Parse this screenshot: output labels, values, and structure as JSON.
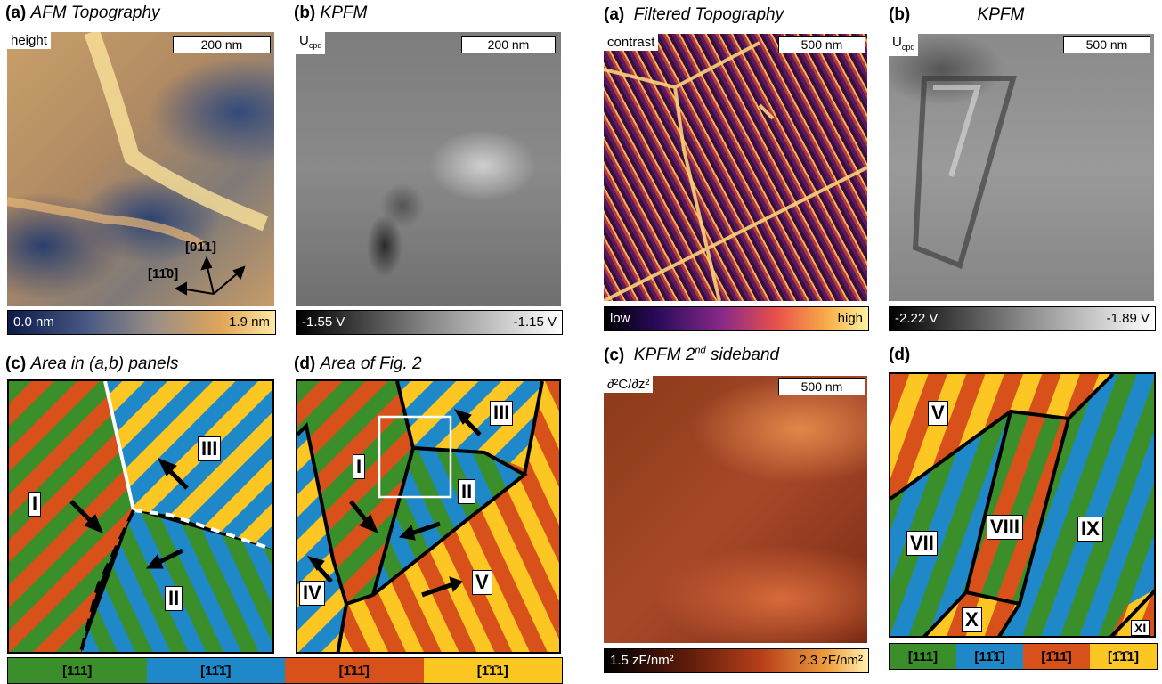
{
  "left_figure": {
    "a": {
      "tag": "(a)",
      "title": "AFM Topography",
      "corner": "height",
      "scale": "200 nm",
      "cbar_min": "0.0 nm",
      "cbar_max": "1.9 nm",
      "dir1": "[01̄1]",
      "dir2": "[11̄0]"
    },
    "b": {
      "tag": "(b)",
      "title": "KPFM",
      "corner": "U",
      "corner_sub": "cpd",
      "scale": "200 nm",
      "cbar_min": "-1.55 V",
      "cbar_max": "-1.15 V"
    },
    "c": {
      "tag": "(c)",
      "title": "Area in (a,b) panels",
      "domains": [
        "I",
        "II",
        "III"
      ]
    },
    "d": {
      "tag": "(d)",
      "title": "Area of Fig. 2",
      "domains": [
        "I",
        "II",
        "III",
        "IV",
        "V"
      ]
    },
    "legend": [
      "[111]",
      "[11̄1̄]",
      "[1̄11̄]",
      "[1̄1̄1]"
    ]
  },
  "right_figure": {
    "a": {
      "tag": "(a)",
      "title": "Filtered Topography",
      "corner": "contrast",
      "scale": "500 nm",
      "cbar_min": "low",
      "cbar_max": "high"
    },
    "b": {
      "tag": "(b)",
      "title": "KPFM",
      "corner": "U",
      "corner_sub": "cpd",
      "scale": "500 nm",
      "cbar_min": "-2.22 V",
      "cbar_max": "-1.89 V"
    },
    "c": {
      "tag": "(c)",
      "title": "KPFM 2",
      "title_sup": "nd",
      "title_rest": " sideband",
      "corner": "∂²C/∂z²",
      "scale": "500 nm",
      "cbar_min": "1.5 zF/nm²",
      "cbar_max": "2.3 zF/nm²"
    },
    "d": {
      "tag": "(d)",
      "domains": [
        "V",
        "VII",
        "VIII",
        "IX",
        "X",
        "XI"
      ]
    },
    "legend": [
      "[111]",
      "[11̄1̄]",
      "[1̄11̄]",
      "[1̄1̄1]"
    ]
  },
  "colors": {
    "green": "#3a8f2a",
    "blue": "#1f88c8",
    "red": "#d8501a",
    "yellow": "#fcc623"
  }
}
